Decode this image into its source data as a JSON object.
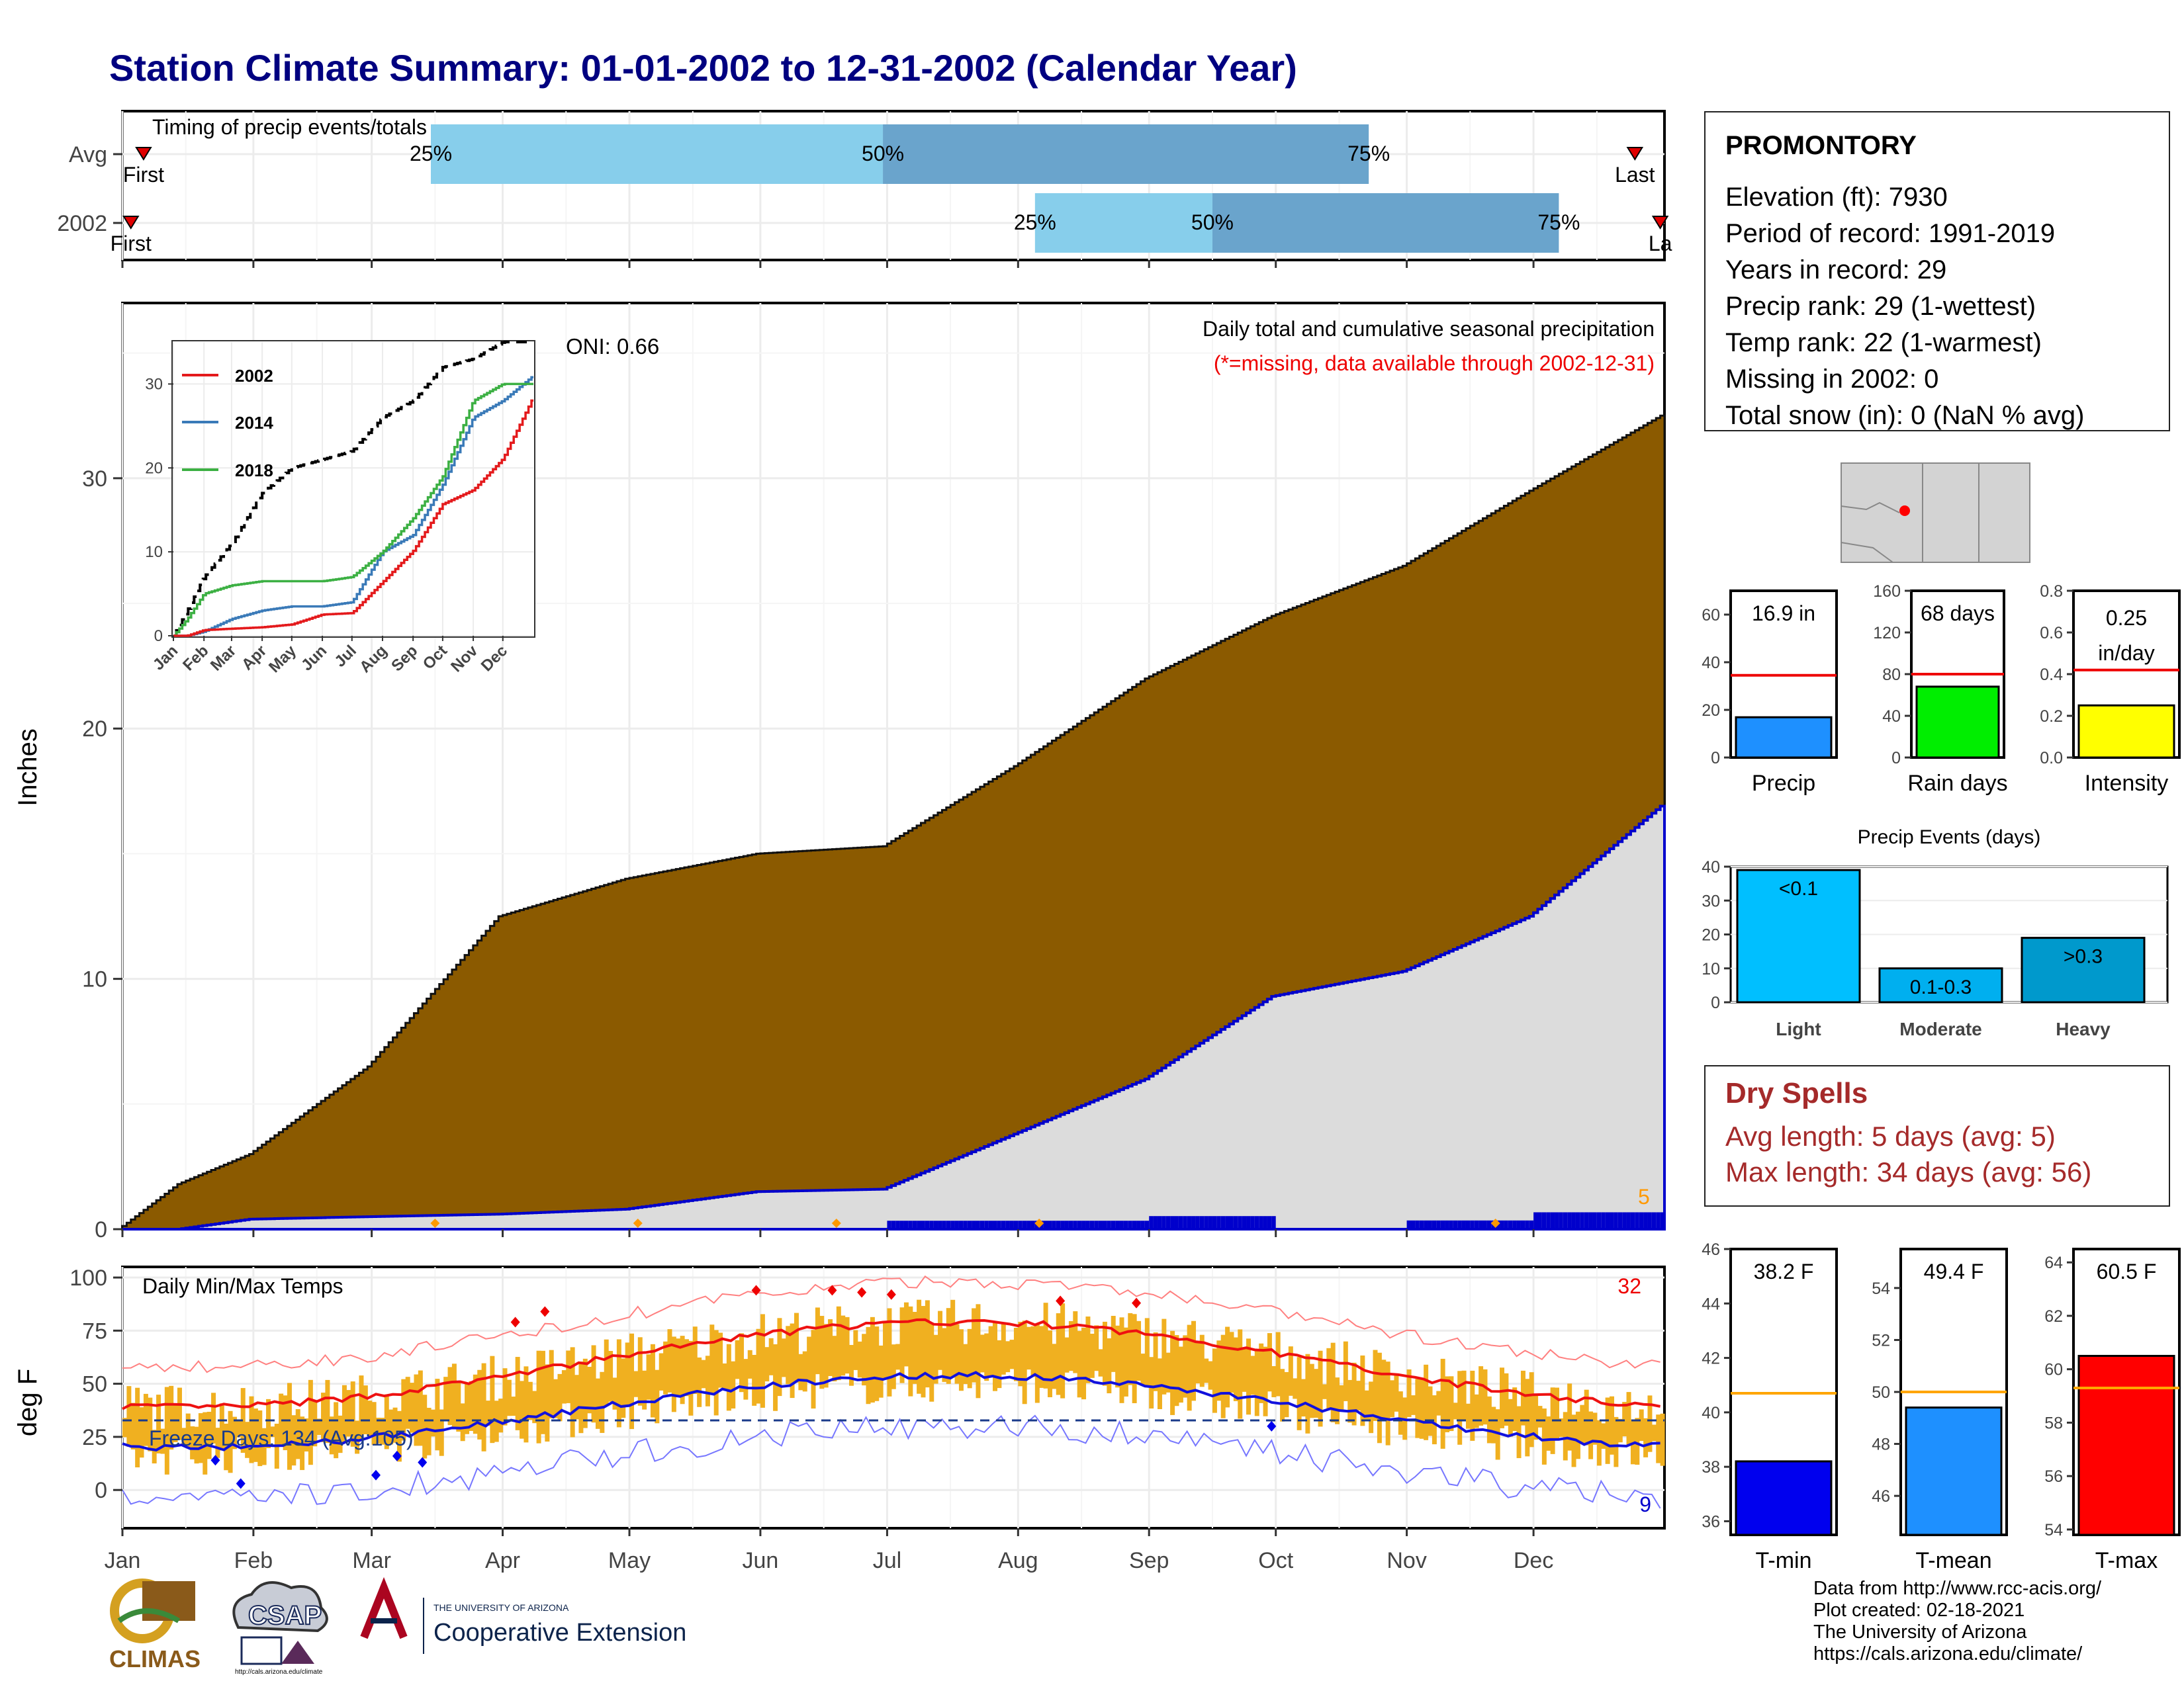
{
  "title": "Station Climate Summary: 01-01-2002 to 12-31-2002 (Calendar Year)",
  "timing_panel": {
    "label": "Timing of precip events/totals",
    "rows": [
      {
        "name": "Avg",
        "first_label": "First",
        "last_label": "Last",
        "p25_label": "25%",
        "p50_label": "50%",
        "p75_label": "75%",
        "first_doy": 5,
        "last_doy": 358,
        "p25_doy": 73,
        "p50_doy": 180,
        "p75_doy": 295
      },
      {
        "name": "2002",
        "first_label": "First",
        "last_label": "La",
        "p25_label": "25%",
        "p50_label": "50%",
        "p75_label": "75%",
        "first_doy": 2,
        "last_doy": 364,
        "p25_doy": 216,
        "p50_doy": 258,
        "p75_doy": 340
      }
    ]
  },
  "station": {
    "name": "PROMONTORY",
    "lines": [
      "Elevation (ft): 7930",
      "Period of record: 1991-2019",
      "Years in record: 29",
      "Precip rank: 29 (1-wettest)",
      "Temp rank: 22 (1-warmest)",
      "Missing in 2002: 0",
      "Total snow (in): 0 (NaN % avg)"
    ]
  },
  "precip_panel": {
    "ylabel": "Inches",
    "oni": "ONI: 0.66",
    "heading": "Daily total and cumulative seasonal precipitation",
    "missing_note": "(*=missing, data available through 2002-12-31)",
    "max_daily_label": "5",
    "y_ticks": [
      "0",
      "10",
      "20",
      "30"
    ]
  },
  "inset": {
    "y_ticks": [
      "0",
      "10",
      "20",
      "30"
    ],
    "months": [
      "Jan",
      "Feb",
      "Mar",
      "Apr",
      "May",
      "Jun",
      "Jul",
      "Aug",
      "Sep",
      "Oct",
      "Nov",
      "Dec"
    ],
    "legend": [
      "2002",
      "2014",
      "2018"
    ]
  },
  "temp_panel": {
    "ylabel": "deg F",
    "heading": "Daily Min/Max Temps",
    "freeze_text": "Freeze Days: 134 (Avg:105)",
    "max_label": "32",
    "min_label": "9",
    "y_ticks": [
      "0",
      "25",
      "50",
      "75",
      "100"
    ]
  },
  "x_months": [
    "Jan",
    "Feb",
    "Mar",
    "Apr",
    "May",
    "Jun",
    "Jul",
    "Aug",
    "Sep",
    "Oct",
    "Nov",
    "Dec"
  ],
  "dry_spells": {
    "heading": "Dry Spells",
    "avg_line": "Avg length: 5 days (avg: 5)",
    "max_line": "Max length: 34 days (avg: 56)"
  },
  "colors": {
    "title": "#000080",
    "cum_avg": "#8b5a00",
    "cum_obs": "#dcdcdc",
    "obs_line": "#0000cc",
    "temp_bar": "#f0b020",
    "dry": "#a52a2a"
  },
  "chart_data": [
    {
      "type": "area",
      "title": "Daily total and cumulative seasonal precipitation",
      "ylabel": "Inches",
      "ylim": [
        0,
        37
      ],
      "x": [
        "Jan 1",
        "Jan 15",
        "Feb 1",
        "Mar 1",
        "Apr 1",
        "May 1",
        "Jun 1",
        "Jul 1",
        "Aug 1",
        "Sep 1",
        "Oct 1",
        "Nov 1",
        "Dec 1",
        "Dec 31"
      ],
      "series": [
        {
          "values": [
            0,
            1.8,
            3.0,
            6.5,
            12.5,
            14.0,
            15.0,
            15.3,
            18.5,
            22.0,
            24.5,
            26.5,
            29.5,
            32.5
          ]
        },
        {
          "name": "2002",
          "values": [
            0,
            0,
            0.4,
            0.5,
            0.6,
            0.8,
            1.5,
            1.6,
            3.8,
            6.0,
            9.3,
            10.3,
            12.5,
            16.9
          ]
        }
      ]
    },
    {
      "type": "bar",
      "title": "Precip",
      "value_label": "16.9 in",
      "ylim": [
        0,
        70
      ],
      "y_ticks": [
        "0",
        "20",
        "40",
        "60"
      ],
      "categories": [
        "Precip"
      ],
      "values": [
        16.9
      ],
      "average": 34.5
    },
    {
      "type": "bar",
      "title": "Rain days",
      "value_label": "68 days",
      "ylim": [
        0,
        160
      ],
      "y_ticks": [
        "0",
        "40",
        "80",
        "120",
        "160"
      ],
      "categories": [
        "Rain days"
      ],
      "values": [
        68
      ],
      "average": 80
    },
    {
      "type": "bar",
      "title": "Intensity",
      "value_label": "0.25",
      "value_label2": "in/day",
      "ylim": [
        0,
        0.8
      ],
      "y_ticks": [
        "0.0",
        "0.2",
        "0.4",
        "0.6",
        "0.8"
      ],
      "categories": [
        "Intensity"
      ],
      "values": [
        0.25
      ],
      "average": 0.42
    },
    {
      "type": "bar",
      "title": "Precip Events (days)",
      "ylim": [
        0,
        40
      ],
      "y_ticks": [
        "0",
        "10",
        "20",
        "30",
        "40"
      ],
      "categories": [
        "Light",
        "Moderate",
        "Heavy"
      ],
      "bar_labels": [
        "<0.1",
        "0.1-0.3",
        ">0.3"
      ],
      "values": [
        39,
        10,
        19
      ]
    },
    {
      "type": "bar",
      "title": "T-min",
      "value_label": "38.2 F",
      "ylim": [
        35.5,
        46
      ],
      "y_ticks": [
        "36",
        "38",
        "40",
        "42",
        "44",
        "46"
      ],
      "categories": [
        "T-min"
      ],
      "values": [
        38.2
      ],
      "average": 40.7
    },
    {
      "type": "bar",
      "title": "T-mean",
      "value_label": "49.4 F",
      "ylim": [
        44.5,
        55.5
      ],
      "y_ticks": [
        "46",
        "48",
        "50",
        "52",
        "54"
      ],
      "categories": [
        "T-mean"
      ],
      "values": [
        49.4
      ],
      "average": 50.0
    },
    {
      "type": "bar",
      "title": "T-max",
      "value_label": "60.5 F",
      "ylim": [
        53.8,
        64.5
      ],
      "y_ticks": [
        "54",
        "56",
        "58",
        "60",
        "62",
        "64"
      ],
      "categories": [
        "T-max"
      ],
      "values": [
        60.5
      ],
      "average": 59.3
    }
  ],
  "footer": {
    "lines": [
      "Data from http://www.rcc-acis.org/",
      "Plot created: 02-18-2021",
      "The University of Arizona",
      "https://cals.arizona.edu/climate/"
    ]
  },
  "logos": {
    "climas": "CLIMAS",
    "csap": "CSAP",
    "ua_line1": "THE UNIVERSITY OF ARIZONA",
    "ua_line2": "Cooperative Extension",
    "csap_url": "http://cals.arizona.edu/climate"
  }
}
